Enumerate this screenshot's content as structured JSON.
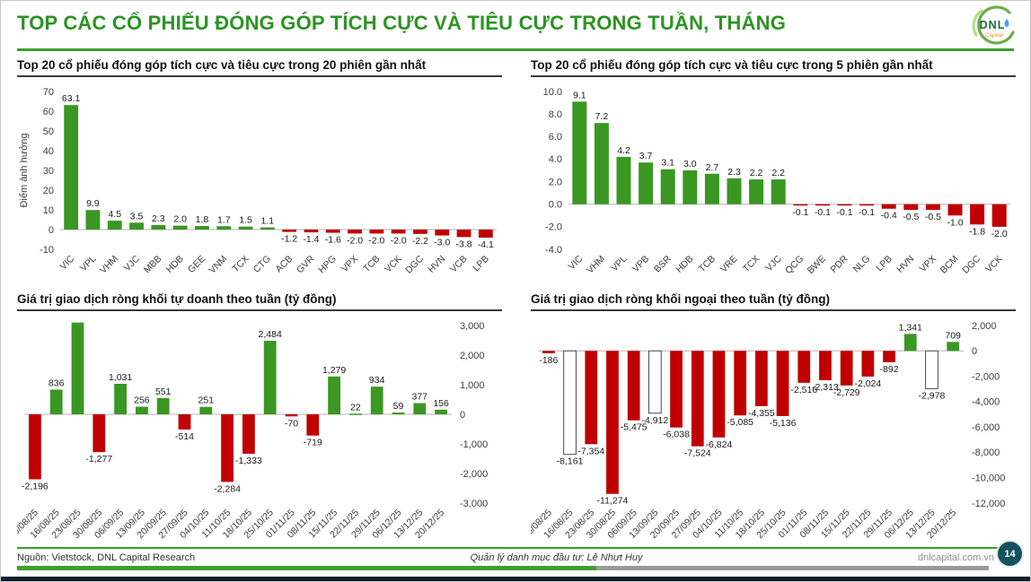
{
  "header": {
    "title": "TOP CÁC CỔ PHIẾU ĐÓNG GÓP TÍCH CỰC VÀ TIÊU CỰC TRONG TUẦN, THÁNG",
    "logo": {
      "name": "DNL",
      "sub": "Capital"
    }
  },
  "colors": {
    "positive": "#3a9722",
    "negative": "#c00000",
    "accent_green": "#3aa02c",
    "badge": "#15525f"
  },
  "chart_data": [
    {
      "id": "top20",
      "type": "bar",
      "title": "Top 20 cổ phiếu đóng góp tích cực và tiêu cực trong 20 phiên gần nhất",
      "ylabel": "Điểm ảnh hưởng",
      "categories": [
        "VIC",
        "VPL",
        "VHM",
        "VJC",
        "MBB",
        "HDB",
        "GEE",
        "VNM",
        "TCX",
        "CTG",
        "ACB",
        "GVR",
        "HPG",
        "VPX",
        "TCB",
        "VCK",
        "DGC",
        "HVN",
        "VCB",
        "LPB"
      ],
      "values": [
        63.1,
        9.9,
        4.5,
        3.5,
        2.3,
        2.0,
        1.8,
        1.7,
        1.5,
        1.1,
        -1.2,
        -1.4,
        -1.6,
        -2.0,
        -2.0,
        -2.0,
        -2.2,
        -3.0,
        -3.8,
        -4.1
      ],
      "labels": [
        "63.1",
        "9.9",
        "4.5",
        "3.5",
        "2.3",
        "2.0",
        "1.8",
        "1.7",
        "1.5",
        "1.1",
        "-1.2",
        "-1.4",
        "-1.6",
        "-2.0",
        "-2.0",
        "-2.0",
        "-2.2",
        "-3.0",
        "-3.8",
        "-4.1"
      ],
      "ylim": [
        -10,
        70
      ],
      "ytick_values": [
        70,
        60,
        50,
        40,
        30,
        20,
        10,
        0,
        -10
      ],
      "ytick_labels": [
        "70",
        "60",
        "50",
        "40",
        "30",
        "20",
        "10",
        "0",
        "-10"
      ],
      "axis_side": "left",
      "grid": false,
      "legend": "none"
    },
    {
      "id": "top5",
      "type": "bar",
      "title": "Top 20 cổ phiếu đóng góp tích cực và tiêu cực trong 5 phiên gần nhất",
      "ylabel": "",
      "categories": [
        "VIC",
        "VHM",
        "VPL",
        "VPB",
        "BSR",
        "HDB",
        "TCB",
        "VRE",
        "TCX",
        "VJC",
        "QCG",
        "BWE",
        "PDR",
        "NLG",
        "LPB",
        "HVN",
        "VPX",
        "BCM",
        "DGC",
        "VCK"
      ],
      "values": [
        9.1,
        7.2,
        4.2,
        3.7,
        3.1,
        3.0,
        2.7,
        2.3,
        2.2,
        2.2,
        -0.1,
        -0.1,
        -0.1,
        -0.1,
        -0.4,
        -0.5,
        -0.5,
        -1.0,
        -1.8,
        -2.0
      ],
      "labels": [
        "9.1",
        "7.2",
        "4.2",
        "3.7",
        "3.1",
        "3.0",
        "2.7",
        "2.3",
        "2.2",
        "2.2",
        "-0.1",
        "-0.1",
        "-0.1",
        "-0.1",
        "-0.4",
        "-0.5",
        "-0.5",
        "-1.0",
        "-1.8",
        "-2.0"
      ],
      "ylim": [
        -4,
        10
      ],
      "ytick_values": [
        10,
        8,
        6,
        4,
        2,
        0,
        -2,
        -4
      ],
      "ytick_labels": [
        "10.0",
        "8.0",
        "6.0",
        "4.0",
        "2.0",
        "0.0",
        "-2.0",
        "-4.0"
      ],
      "axis_side": "left",
      "grid": false,
      "legend": "none"
    },
    {
      "id": "tudoanh",
      "type": "bar",
      "title": "Giá trị giao dịch ròng khối tự doanh theo tuần (tỷ đồng)",
      "ylabel": "",
      "categories": [
        "09/08/25",
        "16/08/25",
        "23/08/25",
        "30/08/25",
        "06/09/25",
        "13/09/25",
        "20/09/25",
        "27/09/25",
        "04/10/25",
        "11/10/25",
        "18/10/25",
        "25/10/25",
        "01/11/25",
        "08/11/25",
        "15/11/25",
        "22/11/25",
        "29/11/25",
        "06/12/25",
        "13/12/25",
        "20/12/25"
      ],
      "values": [
        -2196,
        836,
        3100,
        -1277,
        1031,
        256,
        551,
        -514,
        251,
        -2284,
        -1333,
        2484,
        -70,
        -719,
        1279,
        22,
        934,
        59,
        377,
        156
      ],
      "labels": [
        "-2,196",
        "836",
        "",
        "-1,277",
        "1,031",
        "256",
        "551",
        "-514",
        "251",
        "-2,284",
        "-1,333",
        "2,484",
        "-70",
        "-719",
        "1,279",
        "22",
        "934",
        "59",
        "377",
        "156"
      ],
      "ylim": [
        -3000,
        3000
      ],
      "ytick_values": [
        3000,
        2000,
        1000,
        0,
        -1000,
        -2000,
        -3000
      ],
      "ytick_labels": [
        "3,000",
        "2,000",
        "1,000",
        "0",
        "-1,000",
        "-2,000",
        "-3,000"
      ],
      "axis_side": "right",
      "grid": false,
      "legend": "none"
    },
    {
      "id": "ngoai",
      "type": "bar",
      "title": "Giá trị giao dịch ròng khối ngoại theo tuần (tỷ đồng)",
      "ylabel": "",
      "categories": [
        "09/08/25",
        "16/08/25",
        "23/08/25",
        "30/08/25",
        "06/09/25",
        "13/09/25",
        "20/09/25",
        "27/09/25",
        "04/10/25",
        "11/10/25",
        "18/10/25",
        "25/10/25",
        "01/11/25",
        "08/11/25",
        "15/11/25",
        "22/11/25",
        "29/11/25",
        "06/12/25",
        "13/12/25",
        "20/12/25"
      ],
      "values": [
        -186,
        -8161,
        -7354,
        -11274,
        -5475,
        -4912,
        -6038,
        -7524,
        -6824,
        -5085,
        -4355,
        -5136,
        -2516,
        -2313,
        -2729,
        -2024,
        -892,
        1341,
        -2978,
        709
      ],
      "labels": [
        "-186",
        "-8,161",
        "-7,354",
        "-11,274",
        "-5,475",
        "-4,912",
        "-6,038",
        "-7,524",
        "-6,824",
        "-5,085",
        "-4,355",
        "-5,136",
        "-2,516",
        "-2,313",
        "-2,729",
        "-2,024",
        "-892",
        "1,341",
        "-2,978",
        "709"
      ],
      "white_indices": [
        1,
        5,
        18
      ],
      "ylim": [
        -12000,
        2000
      ],
      "ytick_values": [
        2000,
        0,
        -2000,
        -4000,
        -6000,
        -8000,
        -10000,
        -12000
      ],
      "ytick_labels": [
        "2,000",
        "0",
        "-2,000",
        "-4,000",
        "-6,000",
        "-8,000",
        "-10,000",
        "-12,000"
      ],
      "axis_side": "right",
      "grid": false,
      "legend": "none"
    }
  ],
  "footer": {
    "source": "Nguồn: Vietstock, DNL Capital Research",
    "manager": "Quản lý danh mục đầu tư: Lê Nhựt Huy",
    "website": "dnlcapital.com.vn",
    "page_number": "14"
  }
}
